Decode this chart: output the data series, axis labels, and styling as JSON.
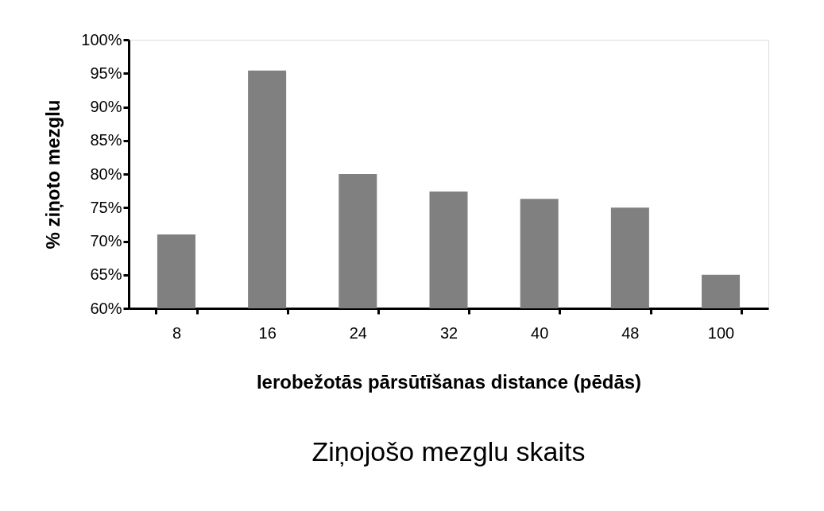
{
  "chart_data": {
    "type": "bar",
    "title": "Ziņojošo mezglu skaits",
    "xlabel": "Ierobežotās pārsūtīšanas distance (pēdās)",
    "ylabel": "% ziņoto mezglu",
    "categories": [
      "8",
      "16",
      "24",
      "32",
      "40",
      "48",
      "100"
    ],
    "values": [
      71,
      95.4,
      80,
      77.4,
      76.3,
      75,
      65
    ],
    "color": "#808080",
    "ylim": [
      60,
      100
    ],
    "yticks": [
      {
        "value": 60,
        "label": "60%"
      },
      {
        "value": 65,
        "label": "65%"
      },
      {
        "value": 70,
        "label": "70%"
      },
      {
        "value": 75,
        "label": "75%"
      },
      {
        "value": 80,
        "label": "80%"
      },
      {
        "value": 85,
        "label": "85%"
      },
      {
        "value": 90,
        "label": "90%"
      },
      {
        "value": 95,
        "label": "95%"
      },
      {
        "value": 100,
        "label": "100%"
      }
    ],
    "grid": false
  }
}
